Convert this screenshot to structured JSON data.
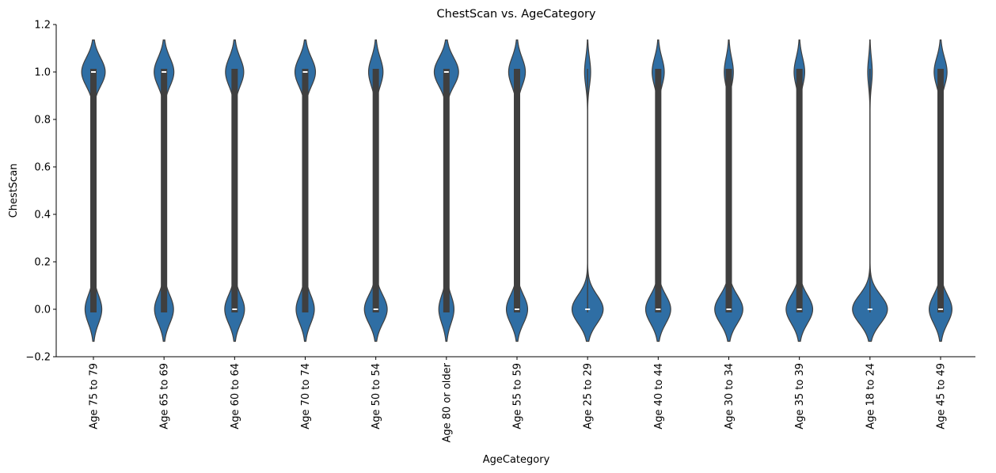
{
  "chart_data": {
    "type": "violin",
    "title": "ChestScan vs. AgeCategory",
    "xlabel": "AgeCategory",
    "ylabel": "ChestScan",
    "ylim": [
      -0.2,
      1.2
    ],
    "yticks": [
      -0.2,
      0.0,
      0.2,
      0.4,
      0.6,
      0.8,
      1.0,
      1.2
    ],
    "ytick_labels": [
      "−0.2",
      "0.0",
      "0.2",
      "0.4",
      "0.6",
      "0.8",
      "1.0",
      "1.2"
    ],
    "color": "#2f6ea4",
    "categories": [
      "Age 75 to 79",
      "Age 65 to 69",
      "Age 60 to 64",
      "Age 70 to 74",
      "Age 50 to 54",
      "Age 80 or older",
      "Age 55 to 59",
      "Age 25 to 29",
      "Age 40 to 44",
      "Age 30 to 34",
      "Age 35 to 39",
      "Age 18 to 24",
      "Age 45 to 49"
    ],
    "violins": [
      {
        "category": "Age 75 to 79",
        "q1": 0,
        "median": 1,
        "q3": 1,
        "top_width": 0.62,
        "bottom_width": 0.44
      },
      {
        "category": "Age 65 to 69",
        "q1": 0,
        "median": 1,
        "q3": 1,
        "top_width": 0.52,
        "bottom_width": 0.5
      },
      {
        "category": "Age 60 to 64",
        "q1": 0,
        "median": 0,
        "q3": 1,
        "top_width": 0.48,
        "bottom_width": 0.52
      },
      {
        "category": "Age 70 to 74",
        "q1": 0,
        "median": 1,
        "q3": 1,
        "top_width": 0.54,
        "bottom_width": 0.48
      },
      {
        "category": "Age 50 to 54",
        "q1": 0,
        "median": 0,
        "q3": 1,
        "top_width": 0.38,
        "bottom_width": 0.6
      },
      {
        "category": "Age 80 or older",
        "q1": 0,
        "median": 1,
        "q3": 1,
        "top_width": 0.64,
        "bottom_width": 0.4
      },
      {
        "category": "Age 55 to 59",
        "q1": 0,
        "median": 0,
        "q3": 1,
        "top_width": 0.44,
        "bottom_width": 0.56
      },
      {
        "category": "Age 25 to 29",
        "q1": 0,
        "median": 0,
        "q3": 0,
        "top_width": 0.16,
        "bottom_width": 0.82
      },
      {
        "category": "Age 40 to 44",
        "q1": 0,
        "median": 0,
        "q3": 1,
        "top_width": 0.32,
        "bottom_width": 0.66
      },
      {
        "category": "Age 30 to 34",
        "q1": 0,
        "median": 0,
        "q3": 1,
        "top_width": 0.24,
        "bottom_width": 0.74
      },
      {
        "category": "Age 35 to 39",
        "q1": 0,
        "median": 0,
        "q3": 1,
        "top_width": 0.28,
        "bottom_width": 0.7
      },
      {
        "category": "Age 18 to 24",
        "q1": 0,
        "median": 0,
        "q3": 0,
        "top_width": 0.12,
        "bottom_width": 0.92
      },
      {
        "category": "Age 45 to 49",
        "q1": 0,
        "median": 0,
        "q3": 1,
        "top_width": 0.34,
        "bottom_width": 0.6
      }
    ]
  }
}
